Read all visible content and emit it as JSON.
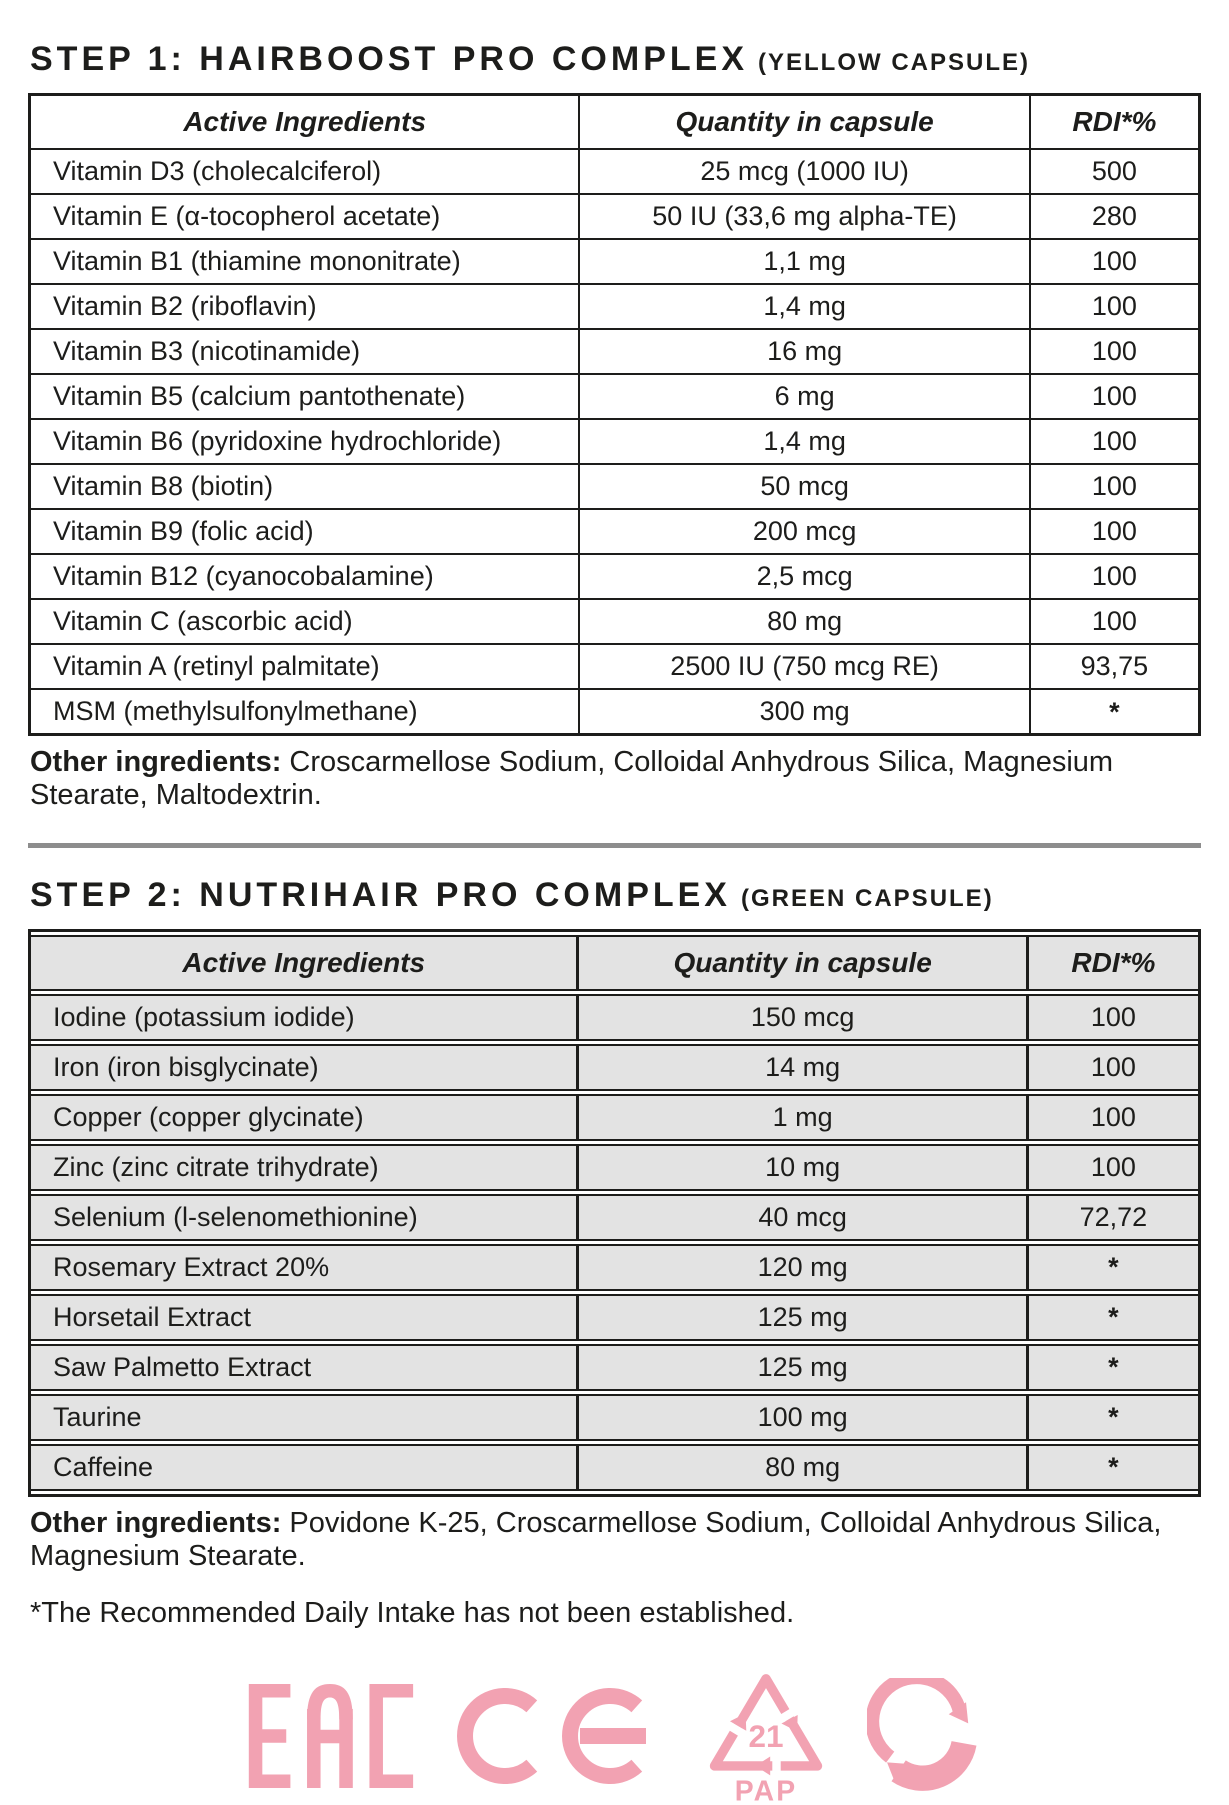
{
  "colors": {
    "ink": "#1d1d1b",
    "table2_cell_bg": "#e3e3e3",
    "divider_grey": "#8d8d8d",
    "icon_pink": "#f2a2b2"
  },
  "step1": {
    "title": "STEP 1: HAIRBOOST PRO COMPLEX",
    "subtitle": "(YELLOW CAPSULE)",
    "table": {
      "headers": [
        "Active Ingredients",
        "Quantity in capsule",
        "RDI*%"
      ],
      "rows": [
        [
          "Vitamin D3 (cholecalciferol)",
          "25 mcg (1000 IU)",
          "500"
        ],
        [
          "Vitamin E (α-tocopherol acetate)",
          "50 IU (33,6 mg alpha-TE)",
          "280"
        ],
        [
          "Vitamin B1 (thiamine mononitrate)",
          "1,1 mg",
          "100"
        ],
        [
          "Vitamin B2 (riboflavin)",
          "1,4 mg",
          "100"
        ],
        [
          "Vitamin B3 (nicotinamide)",
          "16 mg",
          "100"
        ],
        [
          "Vitamin B5 (calcium pantothenate)",
          "6 mg",
          "100"
        ],
        [
          "Vitamin B6 (pyridoxine hydrochloride)",
          "1,4 mg",
          "100"
        ],
        [
          "Vitamin B8 (biotin)",
          "50 mcg",
          "100"
        ],
        [
          "Vitamin B9 (folic acid)",
          "200 mcg",
          "100"
        ],
        [
          "Vitamin B12 (cyanocobalamine)",
          "2,5 mcg",
          "100"
        ],
        [
          "Vitamin C (ascorbic acid)",
          "80 mg",
          "100"
        ],
        [
          "Vitamin A (retinyl palmitate)",
          "2500 IU (750 mcg RE)",
          "93,75"
        ],
        [
          "MSM (methylsulfonylmethane)",
          "300 mg",
          "*"
        ]
      ]
    },
    "other_label": "Other ingredients:",
    "other_text": " Croscarmellose Sodium, Colloidal Anhydrous Silica, Magnesium Stearate, Maltodextrin."
  },
  "step2": {
    "title": "STEP 2: NUTRIHAIR PRO COMPLEX",
    "subtitle": "(GREEN CAPSULE)",
    "table": {
      "headers": [
        "Active Ingredients",
        "Quantity in capsule",
        "RDI*%"
      ],
      "rows": [
        [
          "Iodine (potassium iodide)",
          "150 mcg",
          "100"
        ],
        [
          "Iron (iron bisglycinate)",
          "14 mg",
          "100"
        ],
        [
          "Copper (copper glycinate)",
          "1 mg",
          "100"
        ],
        [
          "Zinc (zinc citrate trihydrate)",
          "10 mg",
          "100"
        ],
        [
          "Selenium (l-selenomethionine)",
          "40 mcg",
          "72,72"
        ],
        [
          "Rosemary Extract 20%",
          "120 mg",
          "*"
        ],
        [
          "Horsetail Extract",
          "125 mg",
          "*"
        ],
        [
          "Saw Palmetto Extract",
          "125 mg",
          "*"
        ],
        [
          "Taurine",
          "100 mg",
          "*"
        ],
        [
          "Caffeine",
          "80 mg",
          "*"
        ]
      ]
    },
    "other_label": "Other ingredients:",
    "other_text": " Povidone K-25, Croscarmellose Sodium, Colloidal Anhydrous Silica, Magnesium Stearate."
  },
  "footnote": "*The Recommended Daily Intake has not been established.",
  "icons": {
    "names": [
      "eac-mark",
      "ce-mark",
      "recycling-code-21-pap",
      "green-dot-recycling"
    ],
    "pap_code": "21",
    "pap_label": "PAP"
  }
}
